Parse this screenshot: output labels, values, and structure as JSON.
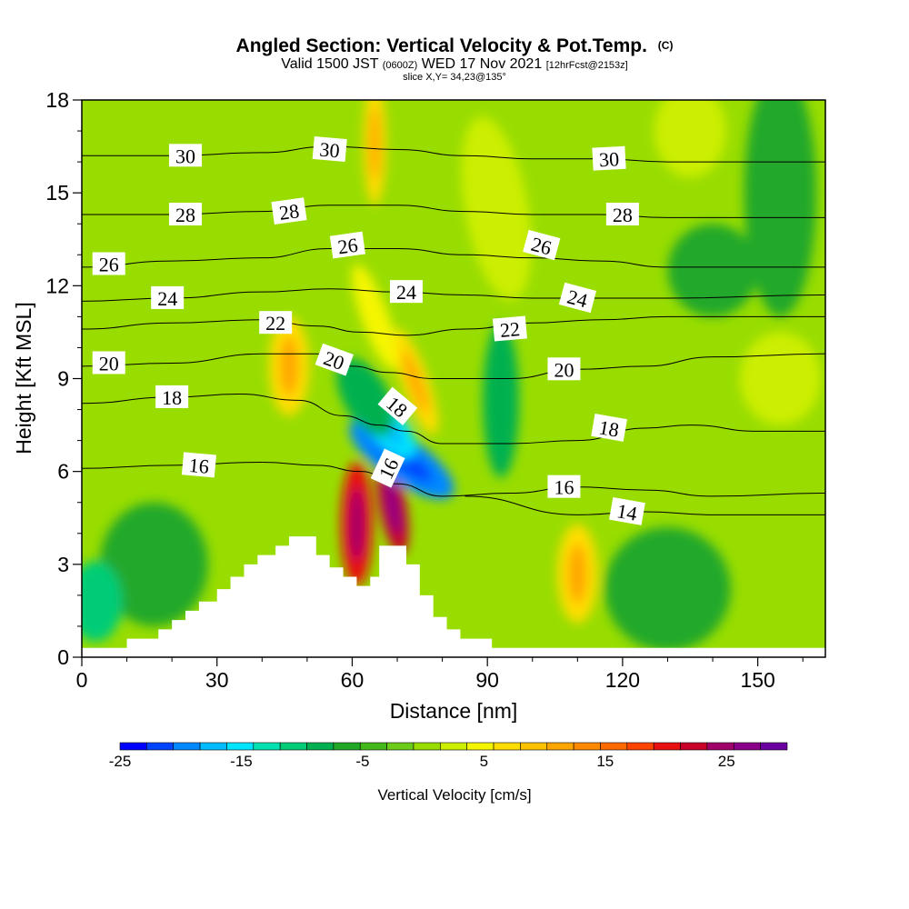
{
  "header": {
    "title": "Angled Section: Vertical Velocity & Pot.Temp.",
    "copyright": "(C)",
    "valid_prefix": "Valid 1500 JST",
    "valid_utc": "(0600Z)",
    "valid_date": "WED 17 Nov 2021",
    "forecast": "[12hrFcst@2153z]",
    "slice": "slice X,Y= 34,23@135°"
  },
  "chart_data": {
    "type": "heatmap",
    "title": "Angled Section: Vertical Velocity & Pot.Temp.",
    "xlabel": "Distance [nm]",
    "ylabel": "Height [Kft MSL]",
    "xlim": [
      0,
      165
    ],
    "ylim": [
      0,
      18
    ],
    "x_ticks": [
      0,
      30,
      60,
      90,
      120,
      150
    ],
    "y_ticks": [
      0,
      3,
      6,
      9,
      12,
      15,
      18
    ],
    "grid": false,
    "colorbar": {
      "title": "Vertical Velocity [cm/s]",
      "min": -25,
      "max": 30,
      "step": 2.5,
      "tick_values": [
        -25,
        -15,
        -5,
        5,
        15,
        25
      ],
      "tick_labels": [
        "-25",
        "-15",
        "-5",
        "5",
        "15",
        "25"
      ],
      "colors": [
        "#0000ff",
        "#0044ff",
        "#0088ff",
        "#00bbff",
        "#00e5ff",
        "#00e0b0",
        "#00cc77",
        "#00b050",
        "#22a829",
        "#44b81a",
        "#6ccc1a",
        "#99dd00",
        "#ccee00",
        "#f5f500",
        "#ffdd00",
        "#ffc200",
        "#ffa600",
        "#ff8a00",
        "#ff6a00",
        "#ff4400",
        "#e81010",
        "#c8002a",
        "#a0006a",
        "#8a0088",
        "#6a00a0"
      ]
    },
    "terrain_profile": [
      [
        0,
        0.3
      ],
      [
        10,
        0.3
      ],
      [
        10,
        0.6
      ],
      [
        17,
        0.6
      ],
      [
        17,
        0.9
      ],
      [
        20,
        0.9
      ],
      [
        20,
        1.2
      ],
      [
        23,
        1.2
      ],
      [
        23,
        1.5
      ],
      [
        26,
        1.5
      ],
      [
        26,
        1.8
      ],
      [
        30,
        1.8
      ],
      [
        30,
        2.2
      ],
      [
        33,
        2.2
      ],
      [
        33,
        2.6
      ],
      [
        36,
        2.6
      ],
      [
        36,
        3.0
      ],
      [
        39,
        3.0
      ],
      [
        39,
        3.3
      ],
      [
        43,
        3.3
      ],
      [
        43,
        3.6
      ],
      [
        46,
        3.6
      ],
      [
        46,
        3.9
      ],
      [
        52,
        3.9
      ],
      [
        52,
        3.3
      ],
      [
        55,
        3.3
      ],
      [
        55,
        2.9
      ],
      [
        58,
        2.9
      ],
      [
        58,
        2.6
      ],
      [
        61,
        2.6
      ],
      [
        61,
        2.3
      ],
      [
        64,
        2.3
      ],
      [
        64,
        2.6
      ],
      [
        66,
        2.6
      ],
      [
        66,
        3.6
      ],
      [
        72,
        3.6
      ],
      [
        72,
        3.0
      ],
      [
        75,
        3.0
      ],
      [
        75,
        2.0
      ],
      [
        78,
        2.0
      ],
      [
        78,
        1.3
      ],
      [
        81,
        1.3
      ],
      [
        81,
        0.9
      ],
      [
        84,
        0.9
      ],
      [
        84,
        0.6
      ],
      [
        91,
        0.6
      ],
      [
        91,
        0.3
      ],
      [
        165,
        0.3
      ]
    ],
    "theta_contours": [
      {
        "value": 14,
        "points": [
          [
            85,
            5.2
          ],
          [
            110,
            4.6
          ],
          [
            125,
            4.7
          ],
          [
            140,
            4.6
          ],
          [
            165,
            4.6
          ]
        ]
      },
      {
        "value": 16,
        "points": [
          [
            0,
            6.1
          ],
          [
            20,
            6.2
          ],
          [
            40,
            6.3
          ],
          [
            52,
            6.2
          ],
          [
            62,
            6.0
          ],
          [
            70,
            5.6
          ],
          [
            80,
            5.2
          ],
          [
            95,
            5.3
          ],
          [
            110,
            5.5
          ],
          [
            125,
            5.4
          ],
          [
            140,
            5.2
          ],
          [
            165,
            5.3
          ]
        ]
      },
      {
        "value": 18,
        "points": [
          [
            0,
            8.2
          ],
          [
            20,
            8.4
          ],
          [
            35,
            8.5
          ],
          [
            48,
            8.3
          ],
          [
            58,
            7.8
          ],
          [
            66,
            7.5
          ],
          [
            72,
            7.3
          ],
          [
            80,
            6.9
          ],
          [
            95,
            6.9
          ],
          [
            110,
            7.0
          ],
          [
            125,
            7.4
          ],
          [
            135,
            7.5
          ],
          [
            150,
            7.3
          ],
          [
            165,
            7.3
          ]
        ]
      },
      {
        "value": 20,
        "points": [
          [
            0,
            9.4
          ],
          [
            20,
            9.5
          ],
          [
            40,
            9.8
          ],
          [
            52,
            9.8
          ],
          [
            60,
            9.4
          ],
          [
            68,
            9.2
          ],
          [
            78,
            9.0
          ],
          [
            95,
            9.0
          ],
          [
            110,
            9.3
          ],
          [
            125,
            9.4
          ],
          [
            140,
            9.7
          ],
          [
            165,
            9.8
          ]
        ]
      },
      {
        "value": 22,
        "points": [
          [
            0,
            10.6
          ],
          [
            20,
            10.8
          ],
          [
            40,
            10.9
          ],
          [
            52,
            10.7
          ],
          [
            62,
            10.5
          ],
          [
            72,
            10.4
          ],
          [
            85,
            10.6
          ],
          [
            100,
            10.8
          ],
          [
            115,
            10.9
          ],
          [
            130,
            11.0
          ],
          [
            165,
            11.0
          ]
        ]
      },
      {
        "value": 24,
        "points": [
          [
            0,
            11.5
          ],
          [
            20,
            11.6
          ],
          [
            40,
            11.8
          ],
          [
            55,
            11.9
          ],
          [
            70,
            11.8
          ],
          [
            85,
            11.7
          ],
          [
            100,
            11.6
          ],
          [
            115,
            11.6
          ],
          [
            130,
            11.6
          ],
          [
            165,
            11.7
          ]
        ]
      },
      {
        "value": 26,
        "points": [
          [
            0,
            12.6
          ],
          [
            20,
            12.8
          ],
          [
            40,
            12.9
          ],
          [
            55,
            13.2
          ],
          [
            70,
            13.2
          ],
          [
            85,
            13.0
          ],
          [
            100,
            12.9
          ],
          [
            115,
            12.8
          ],
          [
            130,
            12.6
          ],
          [
            165,
            12.6
          ]
        ]
      },
      {
        "value": 28,
        "points": [
          [
            0,
            14.3
          ],
          [
            20,
            14.3
          ],
          [
            40,
            14.4
          ],
          [
            55,
            14.6
          ],
          [
            70,
            14.6
          ],
          [
            85,
            14.4
          ],
          [
            100,
            14.3
          ],
          [
            115,
            14.3
          ],
          [
            130,
            14.2
          ],
          [
            165,
            14.2
          ]
        ]
      },
      {
        "value": 30,
        "points": [
          [
            0,
            16.2
          ],
          [
            20,
            16.2
          ],
          [
            40,
            16.3
          ],
          [
            55,
            16.5
          ],
          [
            70,
            16.4
          ],
          [
            85,
            16.2
          ],
          [
            100,
            16.1
          ],
          [
            115,
            16.1
          ],
          [
            130,
            16.0
          ],
          [
            165,
            16.0
          ]
        ]
      }
    ],
    "contour_labels": [
      {
        "text": "30",
        "x": 23,
        "y": 16.2,
        "rot": 0
      },
      {
        "text": "30",
        "x": 55,
        "y": 16.4,
        "rot": 5
      },
      {
        "text": "30",
        "x": 117,
        "y": 16.1,
        "rot": -3
      },
      {
        "text": "28",
        "x": 23,
        "y": 14.3,
        "rot": 0
      },
      {
        "text": "28",
        "x": 46,
        "y": 14.4,
        "rot": -8
      },
      {
        "text": "28",
        "x": 120,
        "y": 14.3,
        "rot": 0
      },
      {
        "text": "26",
        "x": 6,
        "y": 12.7,
        "rot": 0
      },
      {
        "text": "26",
        "x": 59,
        "y": 13.3,
        "rot": -8
      },
      {
        "text": "26",
        "x": 102,
        "y": 13.3,
        "rot": 15
      },
      {
        "text": "24",
        "x": 19,
        "y": 11.6,
        "rot": 0
      },
      {
        "text": "24",
        "x": 72,
        "y": 11.8,
        "rot": 0
      },
      {
        "text": "24",
        "x": 110,
        "y": 11.6,
        "rot": 15
      },
      {
        "text": "22",
        "x": 43,
        "y": 10.8,
        "rot": 0
      },
      {
        "text": "22",
        "x": 95,
        "y": 10.6,
        "rot": -5
      },
      {
        "text": "20",
        "x": 6,
        "y": 9.5,
        "rot": 0
      },
      {
        "text": "20",
        "x": 56,
        "y": 9.6,
        "rot": 20
      },
      {
        "text": "20",
        "x": 107,
        "y": 9.3,
        "rot": 0
      },
      {
        "text": "18",
        "x": 20,
        "y": 8.4,
        "rot": 0
      },
      {
        "text": "18",
        "x": 70,
        "y": 8.1,
        "rot": 40
      },
      {
        "text": "18",
        "x": 117,
        "y": 7.4,
        "rot": 10
      },
      {
        "text": "16",
        "x": 26,
        "y": 6.2,
        "rot": 5
      },
      {
        "text": "16",
        "x": 68,
        "y": 6.1,
        "rot": -65
      },
      {
        "text": "16",
        "x": 107,
        "y": 5.5,
        "rot": 0
      },
      {
        "text": "14",
        "x": 121,
        "y": 4.7,
        "rot": 10
      }
    ],
    "velocity_features": [
      {
        "x": 61,
        "y": 4.3,
        "rx": 3.5,
        "ry": 2.0,
        "value": 27,
        "rot": 0
      },
      {
        "x": 69,
        "y": 4.9,
        "rx": 3.0,
        "ry": 1.6,
        "value": 29,
        "rot": -10
      },
      {
        "x": 71,
        "y": 6.4,
        "rx": 5.0,
        "ry": 2.0,
        "value": -18,
        "rot": -55
      },
      {
        "x": 68,
        "y": 7.4,
        "rx": 4.0,
        "ry": 1.2,
        "value": -13,
        "rot": -40
      },
      {
        "x": 74,
        "y": 8.9,
        "rx": 3.0,
        "ry": 1.8,
        "value": 12,
        "rot": -20
      },
      {
        "x": 46,
        "y": 9.4,
        "rx": 4.5,
        "ry": 1.6,
        "value": 12,
        "rot": 0
      },
      {
        "x": 65,
        "y": 11.0,
        "rx": 3.0,
        "ry": 1.8,
        "value": 8,
        "rot": -20
      },
      {
        "x": 65,
        "y": 16.6,
        "rx": 2.5,
        "ry": 2.0,
        "value": 12,
        "rot": 0
      },
      {
        "x": 110,
        "y": 2.7,
        "rx": 4.5,
        "ry": 1.6,
        "value": 12,
        "rot": 0
      },
      {
        "x": 92,
        "y": 14.5,
        "rx": 7.0,
        "ry": 3.0,
        "value": 6,
        "rot": -10
      },
      {
        "x": 135,
        "y": 17.0,
        "rx": 8.0,
        "ry": 1.5,
        "value": 6,
        "rot": 0
      },
      {
        "x": 155,
        "y": 9.0,
        "rx": 9.0,
        "ry": 1.5,
        "value": 6,
        "rot": 0
      },
      {
        "x": 63,
        "y": 8.4,
        "rx": 5.0,
        "ry": 1.4,
        "value": -6,
        "rot": -30
      },
      {
        "x": 93,
        "y": 8.3,
        "rx": 4.0,
        "ry": 2.5,
        "value": -6,
        "rot": 0
      },
      {
        "x": 130,
        "y": 2.2,
        "rx": 14.0,
        "ry": 2.0,
        "value": -5,
        "rot": 0
      },
      {
        "x": 16,
        "y": 3.0,
        "rx": 12.0,
        "ry": 2.0,
        "value": -5,
        "rot": 0
      },
      {
        "x": 3,
        "y": 1.8,
        "rx": 6.0,
        "ry": 1.3,
        "value": -8,
        "rot": 0
      },
      {
        "x": 155,
        "y": 15.0,
        "rx": 8.0,
        "ry": 4.0,
        "value": -4,
        "rot": 0
      },
      {
        "x": 140,
        "y": 12.5,
        "rx": 10.0,
        "ry": 1.5,
        "value": -4,
        "rot": 0
      }
    ]
  }
}
